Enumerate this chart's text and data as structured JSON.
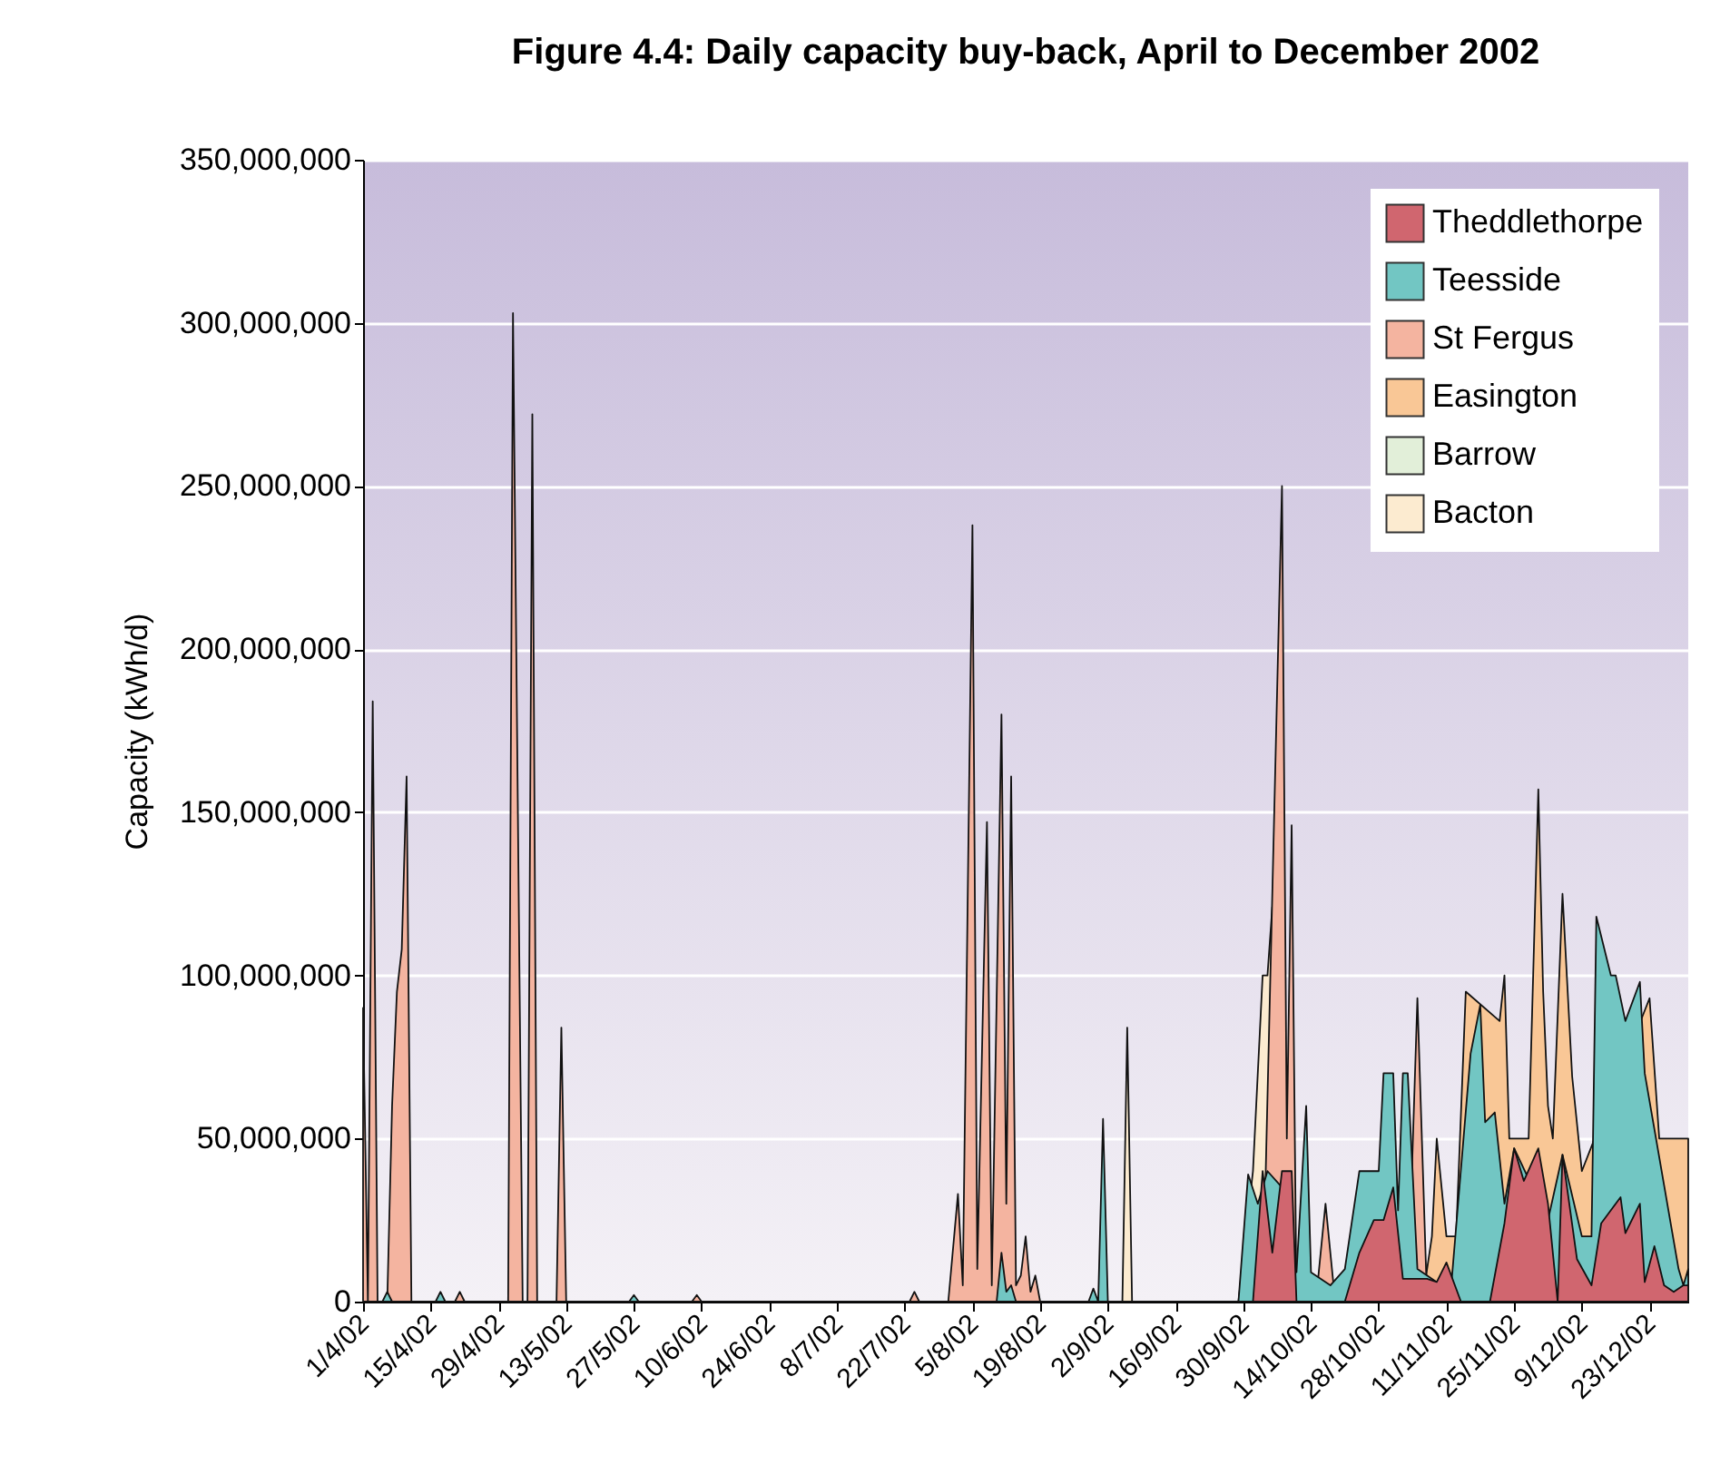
{
  "chart_data": {
    "type": "area",
    "title": "Figure 4.4: Daily capacity buy-back, April to December 2002",
    "ylabel": "Capacity (kWh/d)",
    "xlim": [
      "2002-04-01",
      "2002-12-31"
    ],
    "xticks": [
      {
        "value": "2002-04-01",
        "label": "1/4/02"
      },
      {
        "value": "2002-04-15",
        "label": "15/4/02"
      },
      {
        "value": "2002-04-29",
        "label": "29/4/02"
      },
      {
        "value": "2002-05-13",
        "label": "13/5/02"
      },
      {
        "value": "2002-05-27",
        "label": "27/5/02"
      },
      {
        "value": "2002-06-10",
        "label": "10/6/02"
      },
      {
        "value": "2002-06-24",
        "label": "24/6/02"
      },
      {
        "value": "2002-07-08",
        "label": "8/7/02"
      },
      {
        "value": "2002-07-22",
        "label": "22/7/02"
      },
      {
        "value": "2002-08-05",
        "label": "5/8/02"
      },
      {
        "value": "2002-08-19",
        "label": "19/8/02"
      },
      {
        "value": "2002-09-02",
        "label": "2/9/02"
      },
      {
        "value": "2002-09-16",
        "label": "16/9/02"
      },
      {
        "value": "2002-09-30",
        "label": "30/9/02"
      },
      {
        "value": "2002-10-14",
        "label": "14/10/02"
      },
      {
        "value": "2002-10-28",
        "label": "28/10/02"
      },
      {
        "value": "2002-11-11",
        "label": "11/11/02"
      },
      {
        "value": "2002-11-25",
        "label": "25/11/02"
      },
      {
        "value": "2002-12-09",
        "label": "9/12/02"
      },
      {
        "value": "2002-12-23",
        "label": "23/12/02"
      }
    ],
    "ylim": [
      0,
      350000000
    ],
    "yticks": [
      0,
      {
        "value": 50000000,
        "label": "50,000,000"
      },
      {
        "value": 100000000,
        "label": "100,000,000"
      },
      {
        "value": 150000000,
        "label": "150,000,000"
      },
      {
        "value": 200000000,
        "label": "200,000,000"
      },
      {
        "value": 250000000,
        "label": "250,000,000"
      },
      {
        "value": 300000000,
        "label": "300,000,000"
      },
      {
        "value": 350000000,
        "label": "350,000,000"
      }
    ],
    "grid": "y",
    "legend": "top right",
    "series": [
      {
        "name": "Theddlethorpe",
        "color": "#d0666f",
        "x": [
          "2002-09-29",
          "2002-10-02",
          "2002-10-04",
          "2002-10-06",
          "2002-10-08",
          "2002-10-10",
          "2002-10-11",
          "2002-10-21",
          "2002-10-24",
          "2002-10-27",
          "2002-10-29",
          "2002-10-31",
          "2002-11-02",
          "2002-11-07",
          "2002-11-09",
          "2002-11-11",
          "2002-11-14",
          "2002-11-20",
          "2002-11-23",
          "2002-11-25",
          "2002-11-27",
          "2002-11-30",
          "2002-12-02",
          "2002-12-04",
          "2002-12-05",
          "2002-12-08",
          "2002-12-11",
          "2002-12-13",
          "2002-12-17",
          "2002-12-18",
          "2002-12-21",
          "2002-12-22",
          "2002-12-24",
          "2002-12-26",
          "2002-12-28",
          "2002-12-30",
          "2002-12-31"
        ],
        "values": [
          0,
          0,
          40000000,
          15000000,
          40000000,
          40000000,
          0,
          0,
          15000000,
          25000000,
          25000000,
          35000000,
          7000000,
          7000000,
          6000000,
          12000000,
          0,
          0,
          24000000,
          47000000,
          37000000,
          47000000,
          30000000,
          0,
          45000000,
          13000000,
          5000000,
          24000000,
          32000000,
          21000000,
          30000000,
          6000000,
          17000000,
          5000000,
          3000000,
          5000000,
          5000000
        ]
      },
      {
        "name": "Teesside",
        "color": "#72c6c3",
        "x": [
          "2002-04-05",
          "2002-04-06",
          "2002-04-07",
          "2002-04-16",
          "2002-04-17",
          "2002-04-18",
          "2002-05-26",
          "2002-05-27",
          "2002-05-28",
          "2002-08-10",
          "2002-08-11",
          "2002-08-12",
          "2002-08-13",
          "2002-08-14",
          "2002-08-29",
          "2002-08-30",
          "2002-08-31",
          "2002-09-01",
          "2002-09-02",
          "2002-09-29",
          "2002-10-01",
          "2002-10-03",
          "2002-10-05",
          "2002-10-08",
          "2002-10-11",
          "2002-10-13",
          "2002-10-14",
          "2002-10-18",
          "2002-10-21",
          "2002-10-24",
          "2002-10-28",
          "2002-10-29",
          "2002-10-31",
          "2002-11-01",
          "2002-11-02",
          "2002-11-03",
          "2002-11-05",
          "2002-11-09",
          "2002-11-12",
          "2002-11-16",
          "2002-11-18",
          "2002-11-19",
          "2002-11-21",
          "2002-11-23",
          "2002-11-25",
          "2002-11-27",
          "2002-12-02",
          "2002-12-05",
          "2002-12-09",
          "2002-12-11",
          "2002-12-12",
          "2002-12-15",
          "2002-12-16",
          "2002-12-18",
          "2002-12-19",
          "2002-12-21",
          "2002-12-22",
          "2002-12-29",
          "2002-12-30",
          "2002-12-31"
        ],
        "values": [
          0,
          3000000,
          0,
          0,
          3000000,
          0,
          0,
          2000000,
          0,
          0,
          15000000,
          3000000,
          5000000,
          0,
          0,
          4000000,
          0,
          56000000,
          0,
          0,
          39000000,
          30000000,
          40000000,
          35000000,
          9000000,
          60000000,
          9000000,
          5000000,
          10000000,
          40000000,
          40000000,
          70000000,
          70000000,
          28000000,
          70000000,
          70000000,
          10000000,
          6000000,
          5000000,
          76000000,
          91000000,
          55000000,
          58000000,
          30000000,
          47000000,
          null,
          25000000,
          45000000,
          20000000,
          20000000,
          118000000,
          100000000,
          100000000,
          86000000,
          null,
          98000000,
          70000000,
          10000000,
          5000000,
          10000000
        ]
      },
      {
        "name": "St Fergus",
        "color": "#f4b4a0",
        "x": [
          "2002-04-01",
          "2002-04-02",
          "2002-04-03",
          "2002-04-04",
          "2002-04-06",
          "2002-04-07",
          "2002-04-08",
          "2002-04-09",
          "2002-04-10",
          "2002-04-11",
          "2002-04-20",
          "2002-04-21",
          "2002-04-22",
          "2002-05-01",
          "2002-05-02",
          "2002-05-04",
          "2002-05-05",
          "2002-05-06",
          "2002-05-07",
          "2002-05-11",
          "2002-05-12",
          "2002-05-13",
          "2002-06-08",
          "2002-06-09",
          "2002-06-10",
          "2002-07-23",
          "2002-07-24",
          "2002-07-25",
          "2002-07-31",
          "2002-08-02",
          "2002-08-03",
          "2002-08-05",
          "2002-08-06",
          "2002-08-08",
          "2002-08-09",
          "2002-08-11",
          "2002-08-12",
          "2002-08-13",
          "2002-08-14",
          "2002-08-15",
          "2002-08-16",
          "2002-08-17",
          "2002-08-18",
          "2002-08-19",
          "2002-10-04",
          "2002-10-06",
          "2002-10-08",
          "2002-10-09",
          "2002-10-10",
          "2002-10-11",
          "2002-10-15",
          "2002-10-17",
          "2002-10-19",
          "2002-11-03",
          "2002-11-05",
          "2002-11-07"
        ],
        "values": [
          90000000,
          0,
          184000000,
          0,
          0,
          60000000,
          95000000,
          108000000,
          161000000,
          0,
          0,
          3000000,
          0,
          0,
          303000000,
          0,
          0,
          272000000,
          0,
          0,
          84000000,
          0,
          0,
          2000000,
          0,
          0,
          3000000,
          0,
          0,
          33000000,
          5000000,
          238000000,
          10000000,
          147000000,
          5000000,
          180000000,
          30000000,
          161000000,
          5000000,
          8000000,
          20000000,
          3000000,
          8000000,
          0,
          0,
          null,
          250000000,
          50000000,
          146000000,
          0,
          0,
          30000000,
          0,
          0,
          93000000,
          0
        ]
      },
      {
        "name": "Easington",
        "color": "#f9c796",
        "x": [
          "2002-11-06",
          "2002-11-08",
          "2002-11-09",
          "2002-11-11",
          "2002-11-13",
          "2002-11-15",
          "2002-11-18",
          "2002-11-20",
          "2002-11-22",
          "2002-11-23",
          "2002-11-24",
          "2002-11-28",
          "2002-11-30",
          "2002-12-01",
          "2002-12-02",
          "2002-12-03",
          "2002-12-05",
          "2002-12-07",
          "2002-12-09",
          "2002-12-17",
          "2002-12-20",
          "2002-12-23",
          "2002-12-25",
          "2002-12-28",
          "2002-12-31"
        ],
        "values": [
          0,
          20000000,
          50000000,
          20000000,
          20000000,
          95000000,
          null,
          null,
          86000000,
          100000000,
          50000000,
          50000000,
          157000000,
          95000000,
          60000000,
          50000000,
          125000000,
          69000000,
          40000000,
          null,
          null,
          93000000,
          50000000,
          50000000,
          50000000
        ]
      },
      {
        "name": "Barrow",
        "color": "#e2efd9"
      },
      {
        "name": "Bacton",
        "color": "#fcebd0",
        "x": [
          "2002-09-05",
          "2002-09-06",
          "2002-09-07",
          "2002-09-29",
          "2002-10-02",
          "2002-10-04",
          "2002-10-05",
          "2002-10-06",
          "2002-10-07"
        ],
        "values": [
          0,
          84000000,
          0,
          0,
          40000000,
          100000000,
          100000000,
          121000000,
          0
        ]
      }
    ]
  }
}
